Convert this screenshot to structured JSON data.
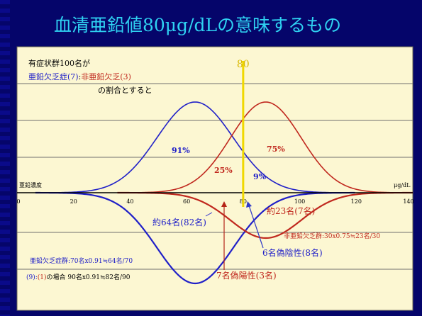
{
  "slide": {
    "title": "血清亜鉛値80μg/dLの意味するもの",
    "colors": {
      "background": "#05056a",
      "title": "#2fd2f2",
      "panel": "#fcf7d2",
      "upper_series": "#2020c8",
      "lower_series": "#c0281e",
      "cutoff": "#f0d800",
      "arrow_lower": "#2f3ac8",
      "arrow_upper": "#b52418"
    }
  },
  "chart_data": {
    "type": "line",
    "title": "",
    "xlabel": "亜鉛濃度",
    "x_unit": "μg/dL",
    "xlim": [
      0,
      140
    ],
    "x_ticks": [
      0,
      20,
      40,
      60,
      80,
      100,
      120,
      140
    ],
    "cutoff": {
      "x": 80,
      "label": "80"
    },
    "grid": true,
    "series": [
      {
        "name": "亜鉛欠乏症",
        "mean": 63,
        "sd": 13.5,
        "color": "#2020c8",
        "region": "upper",
        "peak_pct": 100
      },
      {
        "name": "非亜鉛欠乏",
        "mean": 88,
        "sd": 12.5,
        "color": "#c0281e",
        "region": "upper",
        "peak_pct": 100
      },
      {
        "name": "亜鉛欠乏症",
        "mean": 63,
        "sd": 13.5,
        "color": "#2020c8",
        "region": "lower",
        "peak_pct": 100
      },
      {
        "name": "非亜鉛欠乏",
        "mean": 88,
        "sd": 12.5,
        "color": "#c0281e",
        "region": "lower",
        "peak_pct": 50
      }
    ],
    "area_labels": {
      "blue_left": "91%",
      "blue_right": "9%",
      "red_left": "25%",
      "red_right": "75%"
    },
    "annotations": {
      "intro_line1": "有症状群100名が",
      "intro_deficient": "亜鉛欠乏症(7)",
      "intro_colon": ":",
      "intro_nondeficient": "非亜鉛欠乏(3)",
      "intro_line3": "の割合とすると",
      "count_64": "約64名(82名)",
      "count_23": "約23名(7名)",
      "nondef_calc": "非亜鉛欠乏群:30x0.75≒23名/30",
      "false_negative": "6名偽陰性(8名)",
      "false_positive": "7名偽陽性(3名)",
      "def_calc": "亜鉛欠乏症群:70名x0.91≒64名/70",
      "case_prefix": "(9):",
      "case_mid": "(1)",
      "case_suffix": "の場合 90名x0.91≒82名/90"
    }
  }
}
